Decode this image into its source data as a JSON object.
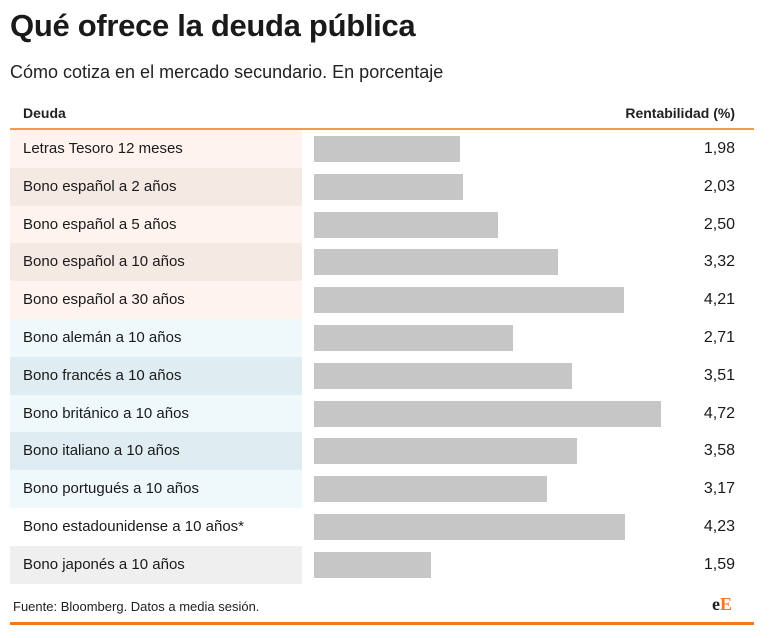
{
  "title": "Qué ofrece la deuda pública",
  "subtitle": "Cómo cotiza en el mercado secundario. En porcentaje",
  "colors": {
    "bar": "#c6c6c6",
    "accent": "#f07a22",
    "spanish_row_a": "#fef3ee",
    "spanish_row_b": "#f5e9e4",
    "foreign_row_a": "#eff9fc",
    "foreign_row_b": "#dfedf2",
    "other_row_a": "#ffffff",
    "other_row_b": "#efefef"
  },
  "chart_data": {
    "type": "bar",
    "title": "Qué ofrece la deuda pública",
    "subtitle": "Cómo cotiza en el mercado secundario. En porcentaje",
    "category_header": "Deuda",
    "value_header": "Rentabilidad (%)",
    "xlim": [
      0,
      5
    ],
    "grid": false,
    "rows": [
      {
        "label": "Letras Tesoro 12 meses",
        "value": 1.98,
        "display": "1,98",
        "group": "spanish"
      },
      {
        "label": "Bono español a 2 años",
        "value": 2.03,
        "display": "2,03",
        "group": "spanish"
      },
      {
        "label": "Bono español a 5 años",
        "value": 2.5,
        "display": "2,50",
        "group": "spanish"
      },
      {
        "label": "Bono español a 10 años",
        "value": 3.32,
        "display": "3,32",
        "group": "spanish"
      },
      {
        "label": "Bono español a 30 años",
        "value": 4.21,
        "display": "4,21",
        "group": "spanish"
      },
      {
        "label": "Bono alemán a 10 años",
        "value": 2.71,
        "display": "2,71",
        "group": "foreign"
      },
      {
        "label": "Bono francés a 10 años",
        "value": 3.51,
        "display": "3,51",
        "group": "foreign"
      },
      {
        "label": "Bono británico a 10 años",
        "value": 4.72,
        "display": "4,72",
        "group": "foreign"
      },
      {
        "label": "Bono italiano a 10 años",
        "value": 3.58,
        "display": "3,58",
        "group": "foreign"
      },
      {
        "label": "Bono portugués a 10 años",
        "value": 3.17,
        "display": "3,17",
        "group": "foreign"
      },
      {
        "label": "Bono estadounidense a 10 años*",
        "value": 4.23,
        "display": "4,23",
        "group": "other"
      },
      {
        "label": "Bono japonés a 10 años",
        "value": 1.59,
        "display": "1,59",
        "group": "other"
      }
    ]
  },
  "footer": {
    "source": "Fuente: Bloomberg. Datos a media sesión.",
    "logo_e1": "e",
    "logo_e2": "E"
  }
}
